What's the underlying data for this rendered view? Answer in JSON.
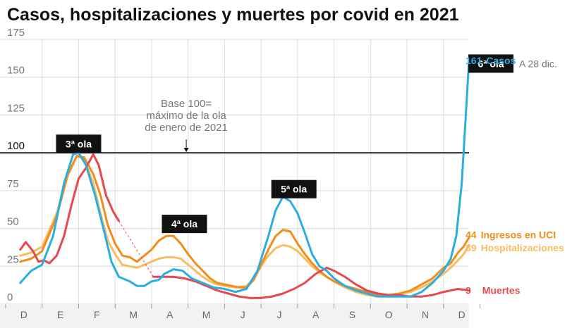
{
  "title": "Casos, hospitalizaciones y muertes por covid en 2021",
  "chart_data": {
    "type": "line",
    "baseline": {
      "value": 100,
      "label": "100"
    },
    "annotation": [
      "Base 100=",
      "máximo de la ola",
      "de enero de 2021"
    ],
    "date_note": "A 28 dic.",
    "y_ticks": [
      "0",
      "25",
      "50",
      "75",
      "100",
      "125",
      "150",
      "175"
    ],
    "ylim": [
      0,
      175
    ],
    "xlim": [
      0,
      12.7
    ],
    "x_ticks": [
      {
        "label": "D",
        "x": 0.5
      },
      {
        "label": "E",
        "x": 1.5
      },
      {
        "label": "F",
        "x": 2.5
      },
      {
        "label": "M",
        "x": 3.5
      },
      {
        "label": "A",
        "x": 4.5
      },
      {
        "label": "M",
        "x": 5.5
      },
      {
        "label": "J",
        "x": 6.5
      },
      {
        "label": "J",
        "x": 7.5
      },
      {
        "label": "A",
        "x": 8.5
      },
      {
        "label": "S",
        "x": 9.5
      },
      {
        "label": "O",
        "x": 10.5
      },
      {
        "label": "N",
        "x": 11.5
      },
      {
        "label": "D",
        "x": 12.5
      }
    ],
    "waves": [
      {
        "label": "3ª ola",
        "x": 2.0,
        "y": 106
      },
      {
        "label": "4ª ola",
        "x": 4.9,
        "y": 53
      },
      {
        "label": "5ª ola",
        "x": 7.9,
        "y": 76
      },
      {
        "label": "6ª ola",
        "x": 13.3,
        "y": 159
      }
    ],
    "series": [
      {
        "name": "Casos",
        "end_value": "161",
        "color": "#2aaee0",
        "points": [
          [
            0.4,
            14
          ],
          [
            0.7,
            22
          ],
          [
            1.0,
            26
          ],
          [
            1.3,
            45
          ],
          [
            1.6,
            80
          ],
          [
            1.85,
            99
          ],
          [
            2.0,
            100
          ],
          [
            2.2,
            92
          ],
          [
            2.45,
            72
          ],
          [
            2.7,
            48
          ],
          [
            2.9,
            28
          ],
          [
            3.1,
            18
          ],
          [
            3.4,
            15
          ],
          [
            3.6,
            12
          ],
          [
            3.8,
            12
          ],
          [
            4.0,
            15
          ],
          [
            4.2,
            16
          ],
          [
            4.35,
            20
          ],
          [
            4.6,
            23
          ],
          [
            4.85,
            22
          ],
          [
            5.1,
            17
          ],
          [
            5.4,
            14
          ],
          [
            5.7,
            11
          ],
          [
            6.0,
            10
          ],
          [
            6.3,
            8
          ],
          [
            6.6,
            10
          ],
          [
            6.9,
            22
          ],
          [
            7.2,
            45
          ],
          [
            7.4,
            62
          ],
          [
            7.6,
            71
          ],
          [
            7.8,
            68
          ],
          [
            8.0,
            60
          ],
          [
            8.2,
            47
          ],
          [
            8.4,
            33
          ],
          [
            8.6,
            25
          ],
          [
            8.8,
            22
          ],
          [
            9.0,
            17
          ],
          [
            9.3,
            12
          ],
          [
            9.6,
            9
          ],
          [
            9.9,
            7
          ],
          [
            10.2,
            5
          ],
          [
            10.5,
            5
          ],
          [
            10.8,
            5
          ],
          [
            11.1,
            5
          ],
          [
            11.4,
            8
          ],
          [
            11.7,
            14
          ],
          [
            12.0,
            22
          ],
          [
            12.2,
            30
          ],
          [
            12.35,
            45
          ],
          [
            12.5,
            80
          ],
          [
            12.6,
            120
          ],
          [
            12.7,
            161
          ]
        ]
      },
      {
        "name": "Ingresos en UCI",
        "end_value": "44",
        "color": "#f28c1a",
        "points": [
          [
            0.4,
            28
          ],
          [
            0.7,
            30
          ],
          [
            1.0,
            35
          ],
          [
            1.4,
            58
          ],
          [
            1.7,
            85
          ],
          [
            1.95,
            98
          ],
          [
            2.15,
            97
          ],
          [
            2.4,
            86
          ],
          [
            2.6,
            72
          ],
          [
            2.8,
            52
          ],
          [
            3.0,
            40
          ],
          [
            3.2,
            32
          ],
          [
            3.4,
            31
          ],
          [
            3.6,
            28
          ],
          [
            3.8,
            32
          ],
          [
            4.0,
            36
          ],
          [
            4.2,
            42
          ],
          [
            4.4,
            45
          ],
          [
            4.6,
            45
          ],
          [
            4.8,
            40
          ],
          [
            5.0,
            33
          ],
          [
            5.2,
            27
          ],
          [
            5.4,
            22
          ],
          [
            5.6,
            17
          ],
          [
            5.8,
            14
          ],
          [
            6.0,
            13
          ],
          [
            6.2,
            12
          ],
          [
            6.4,
            11
          ],
          [
            6.6,
            11
          ],
          [
            6.8,
            16
          ],
          [
            7.0,
            26
          ],
          [
            7.2,
            36
          ],
          [
            7.4,
            45
          ],
          [
            7.6,
            49
          ],
          [
            7.8,
            48
          ],
          [
            8.0,
            40
          ],
          [
            8.2,
            33
          ],
          [
            8.4,
            27
          ],
          [
            8.6,
            22
          ],
          [
            8.8,
            18
          ],
          [
            9.0,
            15
          ],
          [
            9.3,
            12
          ],
          [
            9.6,
            10
          ],
          [
            9.9,
            8
          ],
          [
            10.2,
            6
          ],
          [
            10.5,
            6
          ],
          [
            10.8,
            7
          ],
          [
            11.1,
            9
          ],
          [
            11.4,
            13
          ],
          [
            11.7,
            17
          ],
          [
            12.0,
            24
          ],
          [
            12.2,
            27
          ],
          [
            12.4,
            34
          ],
          [
            12.55,
            38
          ],
          [
            12.7,
            44
          ]
        ]
      },
      {
        "name": "Hospitalizaciones",
        "end_value": "39",
        "color": "#f8bc62",
        "points": [
          [
            0.4,
            32
          ],
          [
            0.7,
            34
          ],
          [
            1.0,
            38
          ],
          [
            1.4,
            60
          ],
          [
            1.7,
            86
          ],
          [
            1.95,
            98
          ],
          [
            2.15,
            96
          ],
          [
            2.4,
            80
          ],
          [
            2.6,
            60
          ],
          [
            2.8,
            42
          ],
          [
            3.0,
            33
          ],
          [
            3.2,
            26
          ],
          [
            3.4,
            25
          ],
          [
            3.6,
            24
          ],
          [
            3.8,
            26
          ],
          [
            4.0,
            28
          ],
          [
            4.2,
            30
          ],
          [
            4.4,
            31
          ],
          [
            4.6,
            31
          ],
          [
            4.8,
            30
          ],
          [
            5.0,
            26
          ],
          [
            5.2,
            22
          ],
          [
            5.4,
            18
          ],
          [
            5.6,
            15
          ],
          [
            5.8,
            13
          ],
          [
            6.0,
            12
          ],
          [
            6.3,
            11
          ],
          [
            6.6,
            12
          ],
          [
            6.8,
            17
          ],
          [
            7.0,
            25
          ],
          [
            7.2,
            32
          ],
          [
            7.4,
            37
          ],
          [
            7.6,
            39
          ],
          [
            7.8,
            38
          ],
          [
            8.0,
            35
          ],
          [
            8.2,
            30
          ],
          [
            8.4,
            25
          ],
          [
            8.6,
            21
          ],
          [
            8.8,
            18
          ],
          [
            9.0,
            15
          ],
          [
            9.3,
            11
          ],
          [
            9.6,
            8
          ],
          [
            9.9,
            6
          ],
          [
            10.2,
            5
          ],
          [
            10.5,
            6
          ],
          [
            10.8,
            7
          ],
          [
            11.1,
            8
          ],
          [
            11.4,
            11
          ],
          [
            11.7,
            15
          ],
          [
            12.0,
            20
          ],
          [
            12.2,
            24
          ],
          [
            12.4,
            29
          ],
          [
            12.55,
            33
          ],
          [
            12.7,
            39
          ]
        ]
      },
      {
        "name": "Muertes",
        "end_value": "9",
        "color": "#e5484d",
        "points": [
          [
            0.4,
            36
          ],
          [
            0.55,
            41
          ],
          [
            0.75,
            35
          ],
          [
            0.9,
            28
          ],
          [
            1.05,
            29
          ],
          [
            1.2,
            27
          ],
          [
            1.4,
            32
          ],
          [
            1.6,
            45
          ],
          [
            1.8,
            65
          ],
          [
            2.0,
            83
          ],
          [
            2.2,
            90
          ],
          [
            2.4,
            99
          ],
          [
            2.55,
            92
          ],
          [
            2.75,
            72
          ],
          [
            2.95,
            61
          ],
          [
            3.1,
            55
          ]
        ],
        "points_b": [
          [
            4.05,
            18
          ],
          [
            4.3,
            18
          ],
          [
            4.6,
            18
          ],
          [
            4.9,
            17
          ],
          [
            5.2,
            15
          ],
          [
            5.5,
            12
          ],
          [
            5.8,
            9
          ],
          [
            6.1,
            7
          ],
          [
            6.4,
            5
          ],
          [
            6.7,
            4
          ],
          [
            7.0,
            4
          ],
          [
            7.3,
            5
          ],
          [
            7.6,
            7
          ],
          [
            7.9,
            10
          ],
          [
            8.2,
            14
          ],
          [
            8.5,
            20
          ],
          [
            8.8,
            24
          ],
          [
            9.0,
            22
          ],
          [
            9.3,
            18
          ],
          [
            9.6,
            13
          ],
          [
            9.9,
            9
          ],
          [
            10.2,
            7
          ],
          [
            10.5,
            6
          ],
          [
            10.8,
            6
          ],
          [
            11.1,
            5
          ],
          [
            11.4,
            5
          ],
          [
            11.7,
            6
          ],
          [
            12.0,
            8
          ],
          [
            12.2,
            9
          ],
          [
            12.4,
            10
          ],
          [
            12.7,
            9
          ]
        ],
        "gap": [
          [
            3.1,
            55
          ],
          [
            4.05,
            18
          ]
        ]
      }
    ]
  }
}
